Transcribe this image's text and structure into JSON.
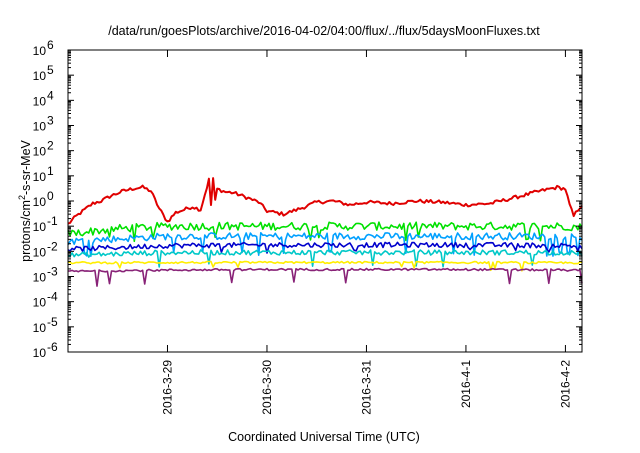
{
  "chart_data": {
    "type": "line",
    "title": "/data/run/goesPlots/archive/2016-04-02/04:00/flux/../flux/5daysMoonFluxes.txt",
    "xlabel": "Coordinated Universal Time (UTC)",
    "ylabel": {
      "prefix": "protons/cm",
      "sup": "2",
      "suffix": "-s-sr-MeV"
    },
    "y_scale": "log",
    "ylim": [
      1e-06,
      1000000.0
    ],
    "y_ticks": [
      {
        "value": 1e-06,
        "base": "10",
        "exp": "-6"
      },
      {
        "value": 1e-05,
        "base": "10",
        "exp": "-5"
      },
      {
        "value": 0.0001,
        "base": "10",
        "exp": "-4"
      },
      {
        "value": 0.001,
        "base": "10",
        "exp": "-3"
      },
      {
        "value": 0.01,
        "base": "10",
        "exp": "-2"
      },
      {
        "value": 0.1,
        "base": "10",
        "exp": "-1"
      },
      {
        "value": 1,
        "base": "10",
        "exp": "0"
      },
      {
        "value": 10,
        "base": "10",
        "exp": "1"
      },
      {
        "value": 100,
        "base": "10",
        "exp": "2"
      },
      {
        "value": 1000,
        "base": "10",
        "exp": "3"
      },
      {
        "value": 10000,
        "base": "10",
        "exp": "4"
      },
      {
        "value": 100000,
        "base": "10",
        "exp": "5"
      },
      {
        "value": 1000000,
        "base": "10",
        "exp": "6"
      }
    ],
    "xlim": [
      "2016-03-28T00:00",
      "2016-04-02T04:00"
    ],
    "x_ticks": [
      {
        "value": "2016-03-29T00:00",
        "label": "2016-3-29"
      },
      {
        "value": "2016-03-30T00:00",
        "label": "2016-3-30"
      },
      {
        "value": "2016-03-31T00:00",
        "label": "2016-3-31"
      },
      {
        "value": "2016-04-01T00:00",
        "label": "2016-4-1"
      },
      {
        "value": "2016-04-02T00:00",
        "label": "2016-4-2"
      }
    ],
    "grid": false,
    "series": [
      {
        "color": "#e00000",
        "noise": 0.07,
        "spikeVal": 0.4,
        "points": [
          [
            "2016-03-28T00:00",
            0.12
          ],
          [
            "2016-03-28T02:00",
            0.25
          ],
          [
            "2016-03-28T04:00",
            0.45
          ],
          [
            "2016-03-28T06:00",
            0.8
          ],
          [
            "2016-03-28T08:00",
            1.0
          ],
          [
            "2016-03-28T10:00",
            1.5
          ],
          [
            "2016-03-28T13:00",
            2.4
          ],
          [
            "2016-03-28T16:00",
            3.2
          ],
          [
            "2016-03-28T18:00",
            3.5
          ],
          [
            "2016-03-28T20:00",
            2.5
          ],
          [
            "2016-03-28T22:00",
            0.5
          ],
          [
            "2016-03-29T00:00",
            0.15
          ],
          [
            "2016-03-29T02:00",
            0.35
          ],
          [
            "2016-03-29T04:00",
            0.45
          ],
          [
            "2016-03-29T06:00",
            0.6
          ],
          [
            "2016-03-29T08:00",
            0.45
          ],
          [
            "2016-03-29T10:00",
            7.0
          ],
          [
            "2016-03-29T10:30",
            0.7
          ],
          [
            "2016-03-29T11:00",
            8.0
          ],
          [
            "2016-03-29T11:30",
            1.0
          ],
          [
            "2016-03-29T12:00",
            3.0
          ],
          [
            "2016-03-29T14:00",
            2.3
          ],
          [
            "2016-03-29T16:00",
            2.1
          ],
          [
            "2016-03-29T19:00",
            1.4
          ],
          [
            "2016-03-29T22:00",
            0.9
          ],
          [
            "2016-03-30T00:00",
            0.4
          ],
          [
            "2016-03-30T04:00",
            0.3
          ],
          [
            "2016-03-30T08:00",
            0.5
          ],
          [
            "2016-03-30T12:00",
            0.9
          ],
          [
            "2016-03-30T16:00",
            1.0
          ],
          [
            "2016-03-30T20:00",
            0.7
          ],
          [
            "2016-03-31T00:00",
            0.9
          ],
          [
            "2016-03-31T06:00",
            0.8
          ],
          [
            "2016-03-31T12:00",
            1.0
          ],
          [
            "2016-03-31T18:00",
            0.9
          ],
          [
            "2016-04-01T00:00",
            0.7
          ],
          [
            "2016-04-01T06:00",
            0.8
          ],
          [
            "2016-04-01T12:00",
            1.4
          ],
          [
            "2016-04-01T18:00",
            2.5
          ],
          [
            "2016-04-01T22:00",
            3.5
          ],
          [
            "2016-04-02T00:00",
            3.0
          ],
          [
            "2016-04-02T01:00",
            0.7
          ],
          [
            "2016-04-02T02:00",
            0.25
          ],
          [
            "2016-04-02T03:00",
            0.45
          ],
          [
            "2016-04-02T04:00",
            0.7
          ]
        ]
      },
      {
        "color": "#00e000",
        "noise": 0.16,
        "spikeVal": 0.03,
        "points": [
          [
            "2016-03-28T00:00",
            0.05
          ],
          [
            "2016-03-28T12:00",
            0.08
          ],
          [
            "2016-03-29T00:00",
            0.1
          ],
          [
            "2016-03-30T00:00",
            0.1
          ],
          [
            "2016-03-31T00:00",
            0.1
          ],
          [
            "2016-04-01T00:00",
            0.1
          ],
          [
            "2016-04-02T00:00",
            0.1
          ],
          [
            "2016-04-02T04:00",
            0.09
          ]
        ]
      },
      {
        "color": "#00a0ff",
        "noise": 0.14,
        "spikeVal": 0.008,
        "points": [
          [
            "2016-03-28T00:00",
            0.025
          ],
          [
            "2016-03-29T00:00",
            0.04
          ],
          [
            "2016-03-30T00:00",
            0.04
          ],
          [
            "2016-03-31T00:00",
            0.04
          ],
          [
            "2016-04-01T00:00",
            0.04
          ],
          [
            "2016-04-02T00:00",
            0.04
          ],
          [
            "2016-04-02T04:00",
            0.035
          ]
        ]
      },
      {
        "color": "#0000cc",
        "noise": 0.1,
        "spikeVal": 0.01,
        "points": [
          [
            "2016-03-28T00:00",
            0.012
          ],
          [
            "2016-03-29T00:00",
            0.017
          ],
          [
            "2016-03-30T00:00",
            0.018
          ],
          [
            "2016-03-31T00:00",
            0.018
          ],
          [
            "2016-04-01T00:00",
            0.018
          ],
          [
            "2016-04-02T00:00",
            0.017
          ],
          [
            "2016-04-02T04:00",
            0.016
          ]
        ]
      },
      {
        "color": "#00c8c8",
        "noise": 0.1,
        "spikeVal": 0.003,
        "points": [
          [
            "2016-03-28T00:00",
            0.007
          ],
          [
            "2016-03-29T00:00",
            0.009
          ],
          [
            "2016-03-30T00:00",
            0.009
          ],
          [
            "2016-03-31T00:00",
            0.009
          ],
          [
            "2016-04-01T00:00",
            0.009
          ],
          [
            "2016-04-02T00:00",
            0.009
          ],
          [
            "2016-04-02T04:00",
            0.008
          ]
        ]
      },
      {
        "color": "#ffee00",
        "noise": 0.04,
        "spikeVal": 0.002,
        "points": [
          [
            "2016-03-28T00:00",
            0.0035
          ],
          [
            "2016-03-29T00:00",
            0.0036
          ],
          [
            "2016-03-30T00:00",
            0.0036
          ],
          [
            "2016-03-31T00:00",
            0.0036
          ],
          [
            "2016-04-01T00:00",
            0.0036
          ],
          [
            "2016-04-02T00:00",
            0.0035
          ],
          [
            "2016-04-02T04:00",
            0.0035
          ]
        ]
      },
      {
        "color": "#882277",
        "noise": 0.04,
        "spikeVal": 0.0005,
        "points": [
          [
            "2016-03-28T00:00",
            0.0016
          ],
          [
            "2016-03-29T00:00",
            0.0018
          ],
          [
            "2016-03-30T00:00",
            0.0019
          ],
          [
            "2016-03-31T00:00",
            0.0019
          ],
          [
            "2016-04-01T00:00",
            0.0019
          ],
          [
            "2016-04-02T00:00",
            0.0018
          ],
          [
            "2016-04-02T04:00",
            0.0017
          ]
        ]
      }
    ]
  }
}
